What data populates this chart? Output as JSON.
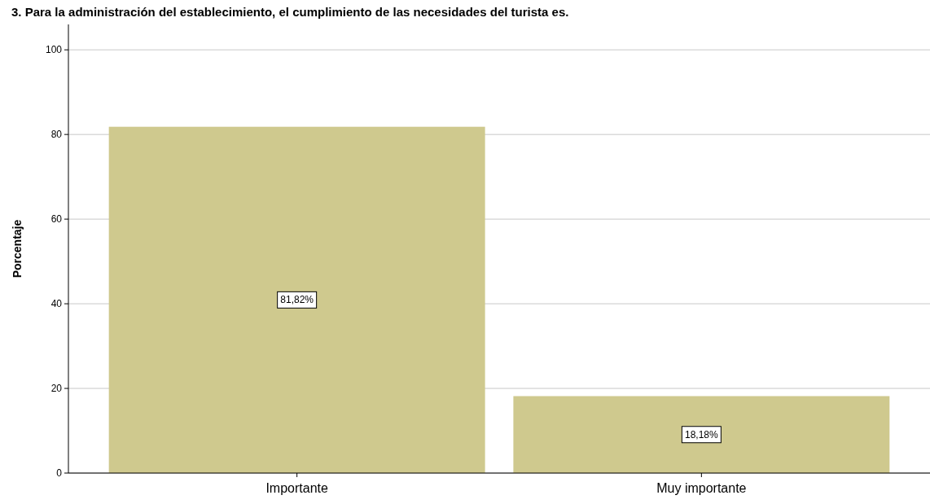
{
  "chart_data": {
    "type": "bar",
    "title": "3. Para la administración del establecimiento, el cumplimiento de las necesidades del turista es.",
    "ylabel": "Porcentaje",
    "categories": [
      "Importante",
      "Muy importante"
    ],
    "values": [
      81.82,
      18.18
    ],
    "value_labels": [
      "81,82%",
      "18,18%"
    ],
    "color": "#cfc98e",
    "ylim": [
      0,
      106
    ],
    "yticks": [
      0,
      20,
      40,
      60,
      80,
      100
    ],
    "grid": "y"
  }
}
